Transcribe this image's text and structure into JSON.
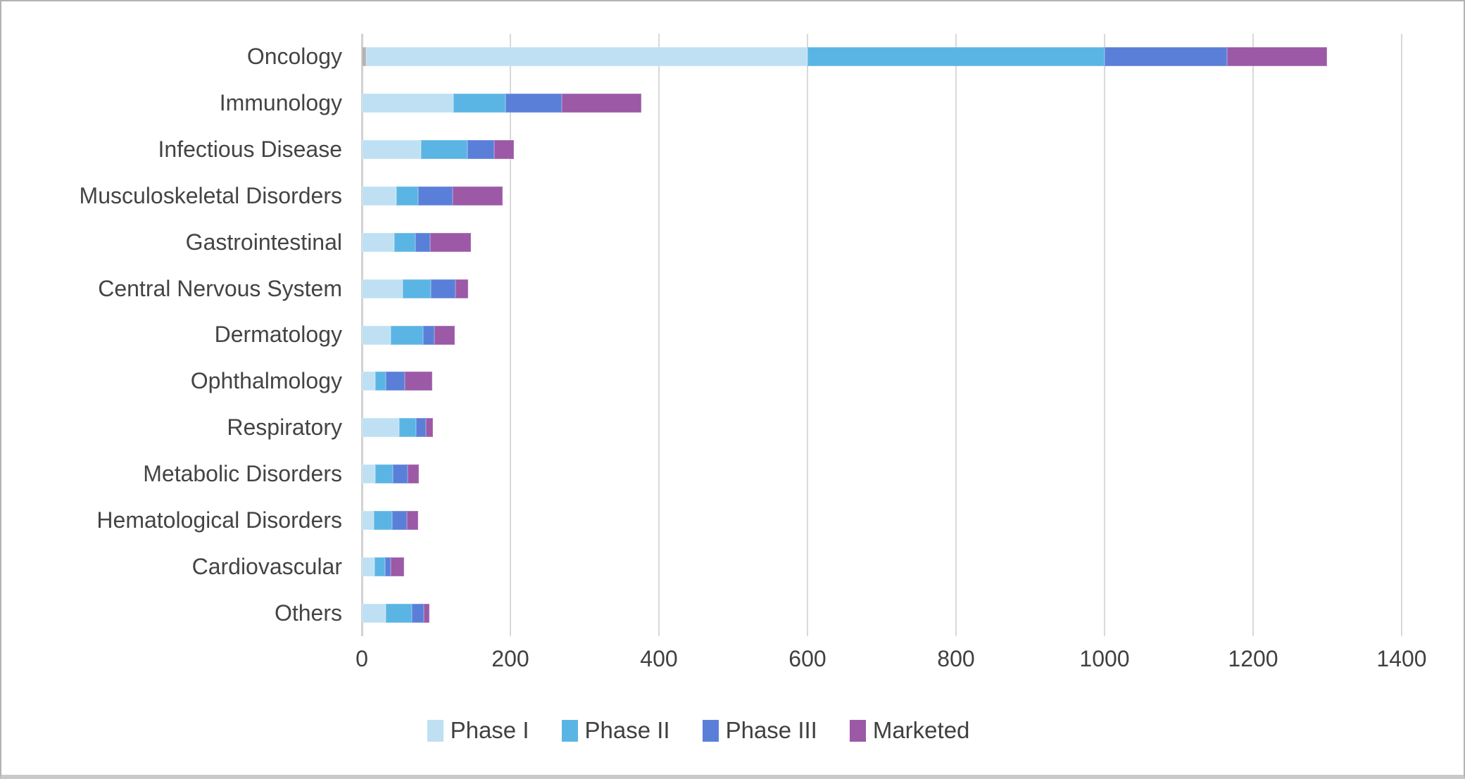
{
  "chart_data": {
    "type": "bar",
    "orientation": "horizontal",
    "stacked": true,
    "title": "",
    "xlabel": "",
    "ylabel": "",
    "xlim": [
      0,
      1400
    ],
    "x_ticks": [
      0,
      200,
      400,
      600,
      800,
      1000,
      1200,
      1400
    ],
    "grid": true,
    "legend_position": "bottom",
    "categories": [
      "Oncology",
      "Immunology",
      "Infectious Disease",
      "Musculoskeletal Disorders",
      "Gastrointestinal",
      "Central Nervous System",
      "Dermatology",
      "Ophthalmology",
      "Respiratory",
      "Metabolic Disorders",
      "Hematological Disorders",
      "Cardiovascular",
      "Others"
    ],
    "series": [
      {
        "name": "Phase I",
        "color": "#BEE0F2",
        "values": [
          594,
          123,
          80,
          46,
          44,
          55,
          39,
          18,
          50,
          18,
          16,
          17,
          32
        ]
      },
      {
        "name": "Phase II",
        "color": "#5BB5E4",
        "values": [
          400,
          70,
          62,
          30,
          28,
          38,
          43,
          14,
          23,
          24,
          25,
          14,
          35
        ]
      },
      {
        "name": "Phase III",
        "color": "#5A7FD8",
        "values": [
          165,
          76,
          36,
          46,
          20,
          33,
          16,
          26,
          13,
          20,
          20,
          8,
          16
        ]
      },
      {
        "name": "Marketed",
        "color": "#9B59A6",
        "values": [
          135,
          107,
          27,
          68,
          55,
          17,
          27,
          37,
          10,
          15,
          15,
          18,
          8
        ]
      }
    ],
    "lead_segment": {
      "category": "Oncology",
      "category_index": 0,
      "value": 6,
      "color": "#B3B3B3"
    }
  },
  "style_colors": {
    "background": "#FFFFFF",
    "grid_line": "#D9D9D9",
    "axis_line": "#D2D2D2",
    "text": "#404040",
    "frame_border": "#B3B3B3"
  }
}
